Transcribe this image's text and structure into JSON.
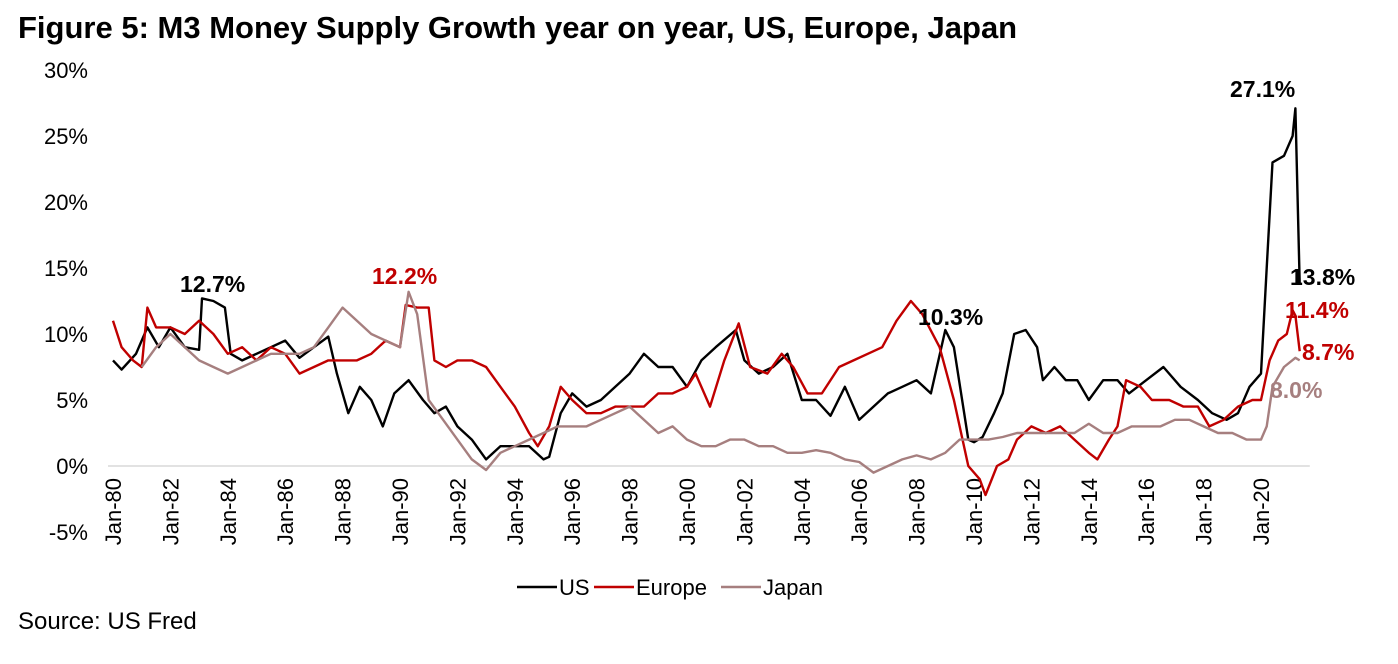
{
  "chart_data": {
    "type": "line",
    "title": "Figure 5: M3 Money Supply Growth year on year, US, Europe, Japan",
    "source": "Source: US Fred",
    "xlabel": "",
    "ylabel": "",
    "ylim": [
      -5,
      30
    ],
    "yticks": [
      "-5%",
      "0%",
      "5%",
      "10%",
      "15%",
      "20%",
      "25%",
      "30%"
    ],
    "ytick_values": [
      -5,
      0,
      5,
      10,
      15,
      20,
      25,
      30
    ],
    "xticks": [
      "Jan-80",
      "Jan-82",
      "Jan-84",
      "Jan-86",
      "Jan-88",
      "Jan-90",
      "Jan-92",
      "Jan-94",
      "Jan-96",
      "Jan-98",
      "Jan-00",
      "Jan-02",
      "Jan-04",
      "Jan-06",
      "Jan-08",
      "Jan-10",
      "Jan-12",
      "Jan-14",
      "Jan-16",
      "Jan-18",
      "Jan-20"
    ],
    "xlim": [
      1980,
      2021.7
    ],
    "legend_position": "bottom",
    "series": [
      {
        "name": "US",
        "color": "#000000",
        "points": [
          [
            1980,
            8
          ],
          [
            1980.3,
            7.3
          ],
          [
            1980.8,
            8.5
          ],
          [
            1981.2,
            10.5
          ],
          [
            1981.6,
            9
          ],
          [
            1982,
            10.5
          ],
          [
            1982.5,
            9
          ],
          [
            1983,
            8.8
          ],
          [
            1983.1,
            12.7
          ],
          [
            1983.5,
            12.5
          ],
          [
            1983.9,
            12
          ],
          [
            1984.1,
            8.5
          ],
          [
            1984.5,
            8
          ],
          [
            1985,
            8.5
          ],
          [
            1985.5,
            9
          ],
          [
            1986,
            9.5
          ],
          [
            1986.5,
            8.2
          ],
          [
            1987,
            9
          ],
          [
            1987.5,
            9.8
          ],
          [
            1987.8,
            7
          ],
          [
            1988.2,
            4
          ],
          [
            1988.6,
            6
          ],
          [
            1989,
            5
          ],
          [
            1989.4,
            3
          ],
          [
            1989.8,
            5.5
          ],
          [
            1990.3,
            6.5
          ],
          [
            1990.8,
            5
          ],
          [
            1991.2,
            4
          ],
          [
            1991.6,
            4.5
          ],
          [
            1992,
            3
          ],
          [
            1992.5,
            2
          ],
          [
            1993,
            0.5
          ],
          [
            1993.5,
            1.5
          ],
          [
            1994,
            1.5
          ],
          [
            1994.5,
            1.5
          ],
          [
            1995,
            0.5
          ],
          [
            1995.2,
            0.7
          ],
          [
            1995.6,
            4
          ],
          [
            1996,
            5.5
          ],
          [
            1996.5,
            4.5
          ],
          [
            1997,
            5
          ],
          [
            1997.5,
            6
          ],
          [
            1998,
            7
          ],
          [
            1998.5,
            8.5
          ],
          [
            1999,
            7.5
          ],
          [
            1999.5,
            7.5
          ],
          [
            2000,
            6
          ],
          [
            2000.5,
            8
          ],
          [
            2001,
            9
          ],
          [
            2001.7,
            10.3
          ],
          [
            2002,
            8
          ],
          [
            2002.5,
            7
          ],
          [
            2003,
            7.5
          ],
          [
            2003.5,
            8.5
          ],
          [
            2004,
            5
          ],
          [
            2004.5,
            5
          ],
          [
            2005,
            3.8
          ],
          [
            2005.5,
            6
          ],
          [
            2006,
            3.5
          ],
          [
            2006.5,
            4.5
          ],
          [
            2007,
            5.5
          ],
          [
            2007.5,
            6
          ],
          [
            2008,
            6.5
          ],
          [
            2008.5,
            5.5
          ],
          [
            2009,
            10.3
          ],
          [
            2009.3,
            9
          ],
          [
            2009.8,
            2
          ],
          [
            2010,
            1.8
          ],
          [
            2010.3,
            2.2
          ],
          [
            2010.7,
            4
          ],
          [
            2011,
            5.5
          ],
          [
            2011.4,
            10
          ],
          [
            2011.8,
            10.3
          ],
          [
            2012.2,
            9
          ],
          [
            2012.4,
            6.5
          ],
          [
            2012.8,
            7.5
          ],
          [
            2013.2,
            6.5
          ],
          [
            2013.6,
            6.5
          ],
          [
            2014,
            5
          ],
          [
            2014.5,
            6.5
          ],
          [
            2015,
            6.5
          ],
          [
            2015.4,
            5.5
          ],
          [
            2016,
            6.5
          ],
          [
            2016.6,
            7.5
          ],
          [
            2017.2,
            6
          ],
          [
            2017.8,
            5
          ],
          [
            2018.3,
            4
          ],
          [
            2018.8,
            3.5
          ],
          [
            2019.2,
            4
          ],
          [
            2019.6,
            6
          ],
          [
            2020,
            7
          ],
          [
            2020.2,
            15
          ],
          [
            2020.4,
            23
          ],
          [
            2020.8,
            23.5
          ],
          [
            2021.1,
            25
          ],
          [
            2021.2,
            27.1
          ],
          [
            2021.35,
            13.8
          ]
        ]
      },
      {
        "name": "Europe",
        "color": "#c00000",
        "points": [
          [
            1980,
            11
          ],
          [
            1980.3,
            9
          ],
          [
            1980.7,
            8
          ],
          [
            1981,
            7.5
          ],
          [
            1981.2,
            12
          ],
          [
            1981.5,
            10.5
          ],
          [
            1982,
            10.5
          ],
          [
            1982.5,
            10
          ],
          [
            1983,
            11
          ],
          [
            1983.5,
            10
          ],
          [
            1984,
            8.5
          ],
          [
            1984.5,
            9
          ],
          [
            1985,
            8
          ],
          [
            1985.5,
            9
          ],
          [
            1986,
            8.5
          ],
          [
            1986.5,
            7
          ],
          [
            1987,
            7.5
          ],
          [
            1987.5,
            8
          ],
          [
            1988,
            8
          ],
          [
            1988.5,
            8
          ],
          [
            1989,
            8.5
          ],
          [
            1989.5,
            9.5
          ],
          [
            1990,
            9
          ],
          [
            1990.2,
            12.2
          ],
          [
            1990.6,
            12
          ],
          [
            1991,
            12
          ],
          [
            1991.2,
            8
          ],
          [
            1991.6,
            7.5
          ],
          [
            1992,
            8
          ],
          [
            1992.5,
            8
          ],
          [
            1993,
            7.5
          ],
          [
            1993.5,
            6
          ],
          [
            1994,
            4.5
          ],
          [
            1994.5,
            2.5
          ],
          [
            1994.8,
            1.5
          ],
          [
            1995.2,
            3
          ],
          [
            1995.6,
            6
          ],
          [
            1996,
            5
          ],
          [
            1996.5,
            4
          ],
          [
            1997,
            4
          ],
          [
            1997.5,
            4.5
          ],
          [
            1998,
            4.5
          ],
          [
            1998.5,
            4.5
          ],
          [
            1999,
            5.5
          ],
          [
            1999.5,
            5.5
          ],
          [
            2000,
            6
          ],
          [
            2000.3,
            7
          ],
          [
            2000.8,
            4.5
          ],
          [
            2001.3,
            8
          ],
          [
            2001.8,
            10.8
          ],
          [
            2002.2,
            7.5
          ],
          [
            2002.8,
            7
          ],
          [
            2003.3,
            8.5
          ],
          [
            2003.7,
            7.5
          ],
          [
            2004.2,
            5.5
          ],
          [
            2004.7,
            5.5
          ],
          [
            2005.3,
            7.5
          ],
          [
            2005.8,
            8
          ],
          [
            2006.3,
            8.5
          ],
          [
            2006.8,
            9
          ],
          [
            2007.3,
            11
          ],
          [
            2007.8,
            12.5
          ],
          [
            2008.2,
            11.5
          ],
          [
            2008.8,
            9
          ],
          [
            2009.3,
            5
          ],
          [
            2009.8,
            0
          ],
          [
            2010.2,
            -1
          ],
          [
            2010.4,
            -2.2
          ],
          [
            2010.8,
            0
          ],
          [
            2011.2,
            0.5
          ],
          [
            2011.5,
            2
          ],
          [
            2012,
            3
          ],
          [
            2012.5,
            2.5
          ],
          [
            2013,
            3
          ],
          [
            2013.5,
            2
          ],
          [
            2014,
            1
          ],
          [
            2014.3,
            0.5
          ],
          [
            2014.7,
            2
          ],
          [
            2015,
            3
          ],
          [
            2015.3,
            6.5
          ],
          [
            2015.8,
            6
          ],
          [
            2016.2,
            5
          ],
          [
            2016.8,
            5
          ],
          [
            2017.3,
            4.5
          ],
          [
            2017.8,
            4.5
          ],
          [
            2018.2,
            3
          ],
          [
            2018.7,
            3.5
          ],
          [
            2019.2,
            4.5
          ],
          [
            2019.7,
            5
          ],
          [
            2020,
            5
          ],
          [
            2020.3,
            8
          ],
          [
            2020.6,
            9.5
          ],
          [
            2020.9,
            10
          ],
          [
            2021.1,
            11.8
          ],
          [
            2021.2,
            11.4
          ],
          [
            2021.35,
            8.7
          ]
        ]
      },
      {
        "name": "Japan",
        "color": "#a67f7f",
        "points": [
          [
            1981,
            7.5
          ],
          [
            1981.5,
            9
          ],
          [
            1982,
            10
          ],
          [
            1982.5,
            9
          ],
          [
            1983,
            8
          ],
          [
            1983.5,
            7.5
          ],
          [
            1984,
            7
          ],
          [
            1984.5,
            7.5
          ],
          [
            1985,
            8
          ],
          [
            1985.5,
            8.5
          ],
          [
            1986,
            8.5
          ],
          [
            1986.5,
            8.5
          ],
          [
            1987,
            9
          ],
          [
            1987.5,
            10.5
          ],
          [
            1988,
            12
          ],
          [
            1988.5,
            11
          ],
          [
            1989,
            10
          ],
          [
            1989.5,
            9.5
          ],
          [
            1990,
            9
          ],
          [
            1990.3,
            13.2
          ],
          [
            1990.6,
            11.5
          ],
          [
            1991,
            5
          ],
          [
            1991.5,
            3.5
          ],
          [
            1992,
            2
          ],
          [
            1992.5,
            0.5
          ],
          [
            1993,
            -0.3
          ],
          [
            1993.5,
            1
          ],
          [
            1994,
            1.5
          ],
          [
            1994.5,
            2
          ],
          [
            1995,
            2.5
          ],
          [
            1995.5,
            3
          ],
          [
            1996,
            3
          ],
          [
            1996.5,
            3
          ],
          [
            1997,
            3.5
          ],
          [
            1997.5,
            4
          ],
          [
            1998,
            4.5
          ],
          [
            1998.5,
            3.5
          ],
          [
            1999,
            2.5
          ],
          [
            1999.5,
            3
          ],
          [
            2000,
            2
          ],
          [
            2000.5,
            1.5
          ],
          [
            2001,
            1.5
          ],
          [
            2001.5,
            2
          ],
          [
            2002,
            2
          ],
          [
            2002.5,
            1.5
          ],
          [
            2003,
            1.5
          ],
          [
            2003.5,
            1
          ],
          [
            2004,
            1
          ],
          [
            2004.5,
            1.2
          ],
          [
            2005,
            1
          ],
          [
            2005.5,
            0.5
          ],
          [
            2006,
            0.3
          ],
          [
            2006.5,
            -0.5
          ],
          [
            2007,
            0
          ],
          [
            2007.5,
            0.5
          ],
          [
            2008,
            0.8
          ],
          [
            2008.5,
            0.5
          ],
          [
            2009,
            1
          ],
          [
            2009.5,
            2
          ],
          [
            2010,
            2
          ],
          [
            2010.5,
            2
          ],
          [
            2011,
            2.2
          ],
          [
            2011.5,
            2.5
          ],
          [
            2012,
            2.5
          ],
          [
            2012.5,
            2.5
          ],
          [
            2013,
            2.5
          ],
          [
            2013.5,
            2.5
          ],
          [
            2014,
            3.2
          ],
          [
            2014.5,
            2.5
          ],
          [
            2015,
            2.5
          ],
          [
            2015.5,
            3
          ],
          [
            2016,
            3
          ],
          [
            2016.5,
            3
          ],
          [
            2017,
            3.5
          ],
          [
            2017.5,
            3.5
          ],
          [
            2018,
            3
          ],
          [
            2018.5,
            2.5
          ],
          [
            2019,
            2.5
          ],
          [
            2019.5,
            2
          ],
          [
            2020,
            2
          ],
          [
            2020.2,
            3
          ],
          [
            2020.4,
            6
          ],
          [
            2020.8,
            7.5
          ],
          [
            2021.2,
            8.2
          ],
          [
            2021.35,
            8
          ]
        ]
      }
    ],
    "annotations": [
      {
        "text": "12.7%",
        "color": "#000000",
        "series": "US",
        "x": 1983.1,
        "y": 12.7
      },
      {
        "text": "12.2%",
        "color": "#c00000",
        "series": "Europe",
        "x": 1990.2,
        "y": 12.2
      },
      {
        "text": "10.3%",
        "color": "#000000",
        "series": "US",
        "x": 2009,
        "y": 10.3
      },
      {
        "text": "27.1%",
        "color": "#000000",
        "series": "US",
        "x": 2021.2,
        "y": 27.1
      },
      {
        "text": "13.8%",
        "color": "#000000",
        "series": "US",
        "x": 2021.35,
        "y": 13.8
      },
      {
        "text": "11.4%",
        "color": "#c00000",
        "series": "Europe",
        "x": 2021.2,
        "y": 11.4
      },
      {
        "text": "8.7%",
        "color": "#c00000",
        "series": "Europe",
        "x": 2021.35,
        "y": 8.7
      },
      {
        "text": "8.0%",
        "color": "#a67f7f",
        "series": "Japan",
        "x": 2021.35,
        "y": 8.0
      }
    ]
  }
}
